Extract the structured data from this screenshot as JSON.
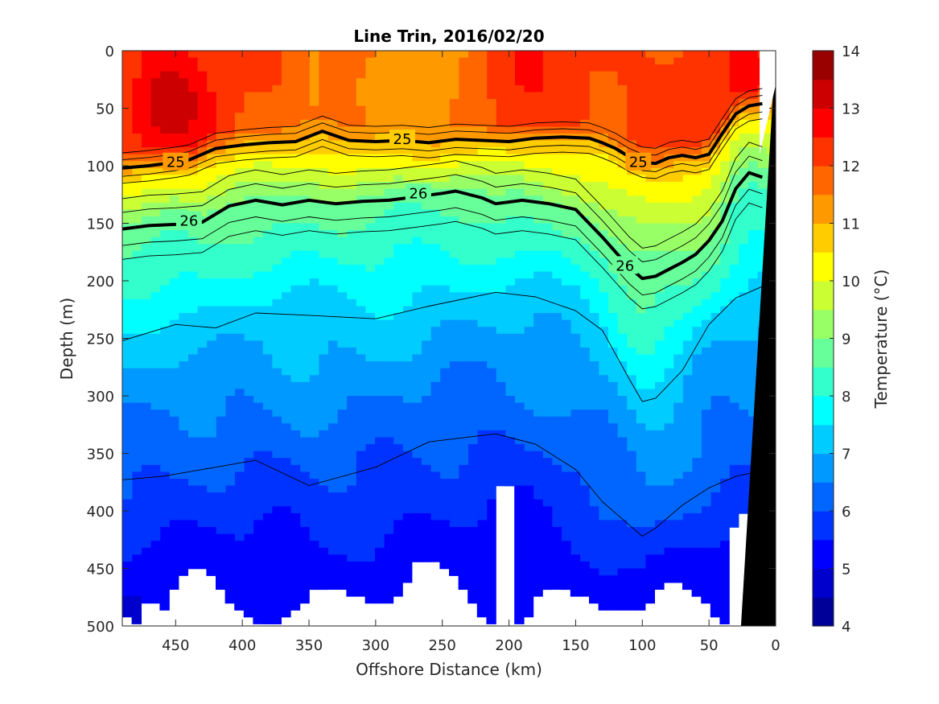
{
  "chart_data": {
    "type": "contour",
    "title": "Line Trin, 2016/02/20",
    "xlabel": "Offshore Distance (km)",
    "ylabel": "Depth (m)",
    "xlim": [
      490,
      0
    ],
    "ylim": [
      0,
      500
    ],
    "x_reversed": true,
    "y_reversed": true,
    "x_ticks": [
      450,
      400,
      350,
      300,
      250,
      200,
      150,
      100,
      50,
      0
    ],
    "y_ticks": [
      0,
      50,
      100,
      150,
      200,
      250,
      300,
      350,
      400,
      450,
      500
    ],
    "colorbar": {
      "label": "Temperature (°C)",
      "range": [
        4,
        14
      ],
      "ticks": [
        4,
        5,
        6,
        7,
        8,
        9,
        10,
        11,
        12,
        13,
        14
      ],
      "colormap": "jet",
      "step": 0.5
    },
    "isopycnal_labels": [
      {
        "text": "25",
        "x": 450,
        "y": 97
      },
      {
        "text": "25",
        "x": 280,
        "y": 77
      },
      {
        "text": "25",
        "x": 103,
        "y": 97
      },
      {
        "text": "26",
        "x": 440,
        "y": 148
      },
      {
        "text": "26",
        "x": 268,
        "y": 124
      },
      {
        "text": "26",
        "x": 113,
        "y": 187
      }
    ],
    "bold_isopycnals": [
      {
        "name": "25",
        "x": [
          490,
          470,
          450,
          440,
          420,
          400,
          380,
          360,
          340,
          320,
          300,
          280,
          260,
          240,
          220,
          200,
          180,
          160,
          140,
          130,
          120,
          110,
          100,
          90,
          80,
          70,
          60,
          50,
          40,
          30,
          20,
          10
        ],
        "y": [
          102,
          100,
          97,
          95,
          85,
          82,
          80,
          79,
          70,
          78,
          79,
          78,
          80,
          77,
          78,
          79,
          76,
          75,
          76,
          80,
          85,
          92,
          97,
          98,
          93,
          91,
          93,
          90,
          72,
          55,
          48,
          46
        ]
      },
      {
        "name": "26",
        "x": [
          490,
          470,
          450,
          430,
          410,
          390,
          370,
          350,
          330,
          310,
          290,
          270,
          250,
          240,
          220,
          210,
          190,
          170,
          150,
          140,
          130,
          120,
          110,
          100,
          90,
          80,
          70,
          60,
          50,
          40,
          30,
          20,
          10
        ],
        "y": [
          155,
          152,
          151,
          149,
          135,
          130,
          134,
          130,
          133,
          131,
          130,
          127,
          124,
          122,
          128,
          133,
          130,
          133,
          138,
          150,
          162,
          175,
          188,
          198,
          196,
          190,
          184,
          177,
          165,
          148,
          120,
          106,
          110
        ]
      }
    ],
    "thin_isopycnals": [
      {
        "x": [
          490,
          450,
          420,
          390,
          350,
          300,
          260,
          210,
          180,
          150,
          130,
          110,
          100,
          90,
          70,
          50,
          30,
          10
        ],
        "y": [
          252,
          238,
          241,
          228,
          230,
          233,
          222,
          210,
          214,
          226,
          243,
          285,
          305,
          302,
          278,
          238,
          215,
          205
        ]
      },
      {
        "x": [
          490,
          460,
          420,
          390,
          350,
          300,
          260,
          210,
          180,
          150,
          130,
          110,
          100,
          90,
          70,
          50,
          30,
          10
        ],
        "y": [
          373,
          370,
          362,
          356,
          378,
          362,
          340,
          333,
          342,
          364,
          392,
          412,
          422,
          415,
          395,
          380,
          370,
          365
        ]
      }
    ],
    "coastline_mask": {
      "top_x": 0,
      "bottom_x": 26
    }
  }
}
